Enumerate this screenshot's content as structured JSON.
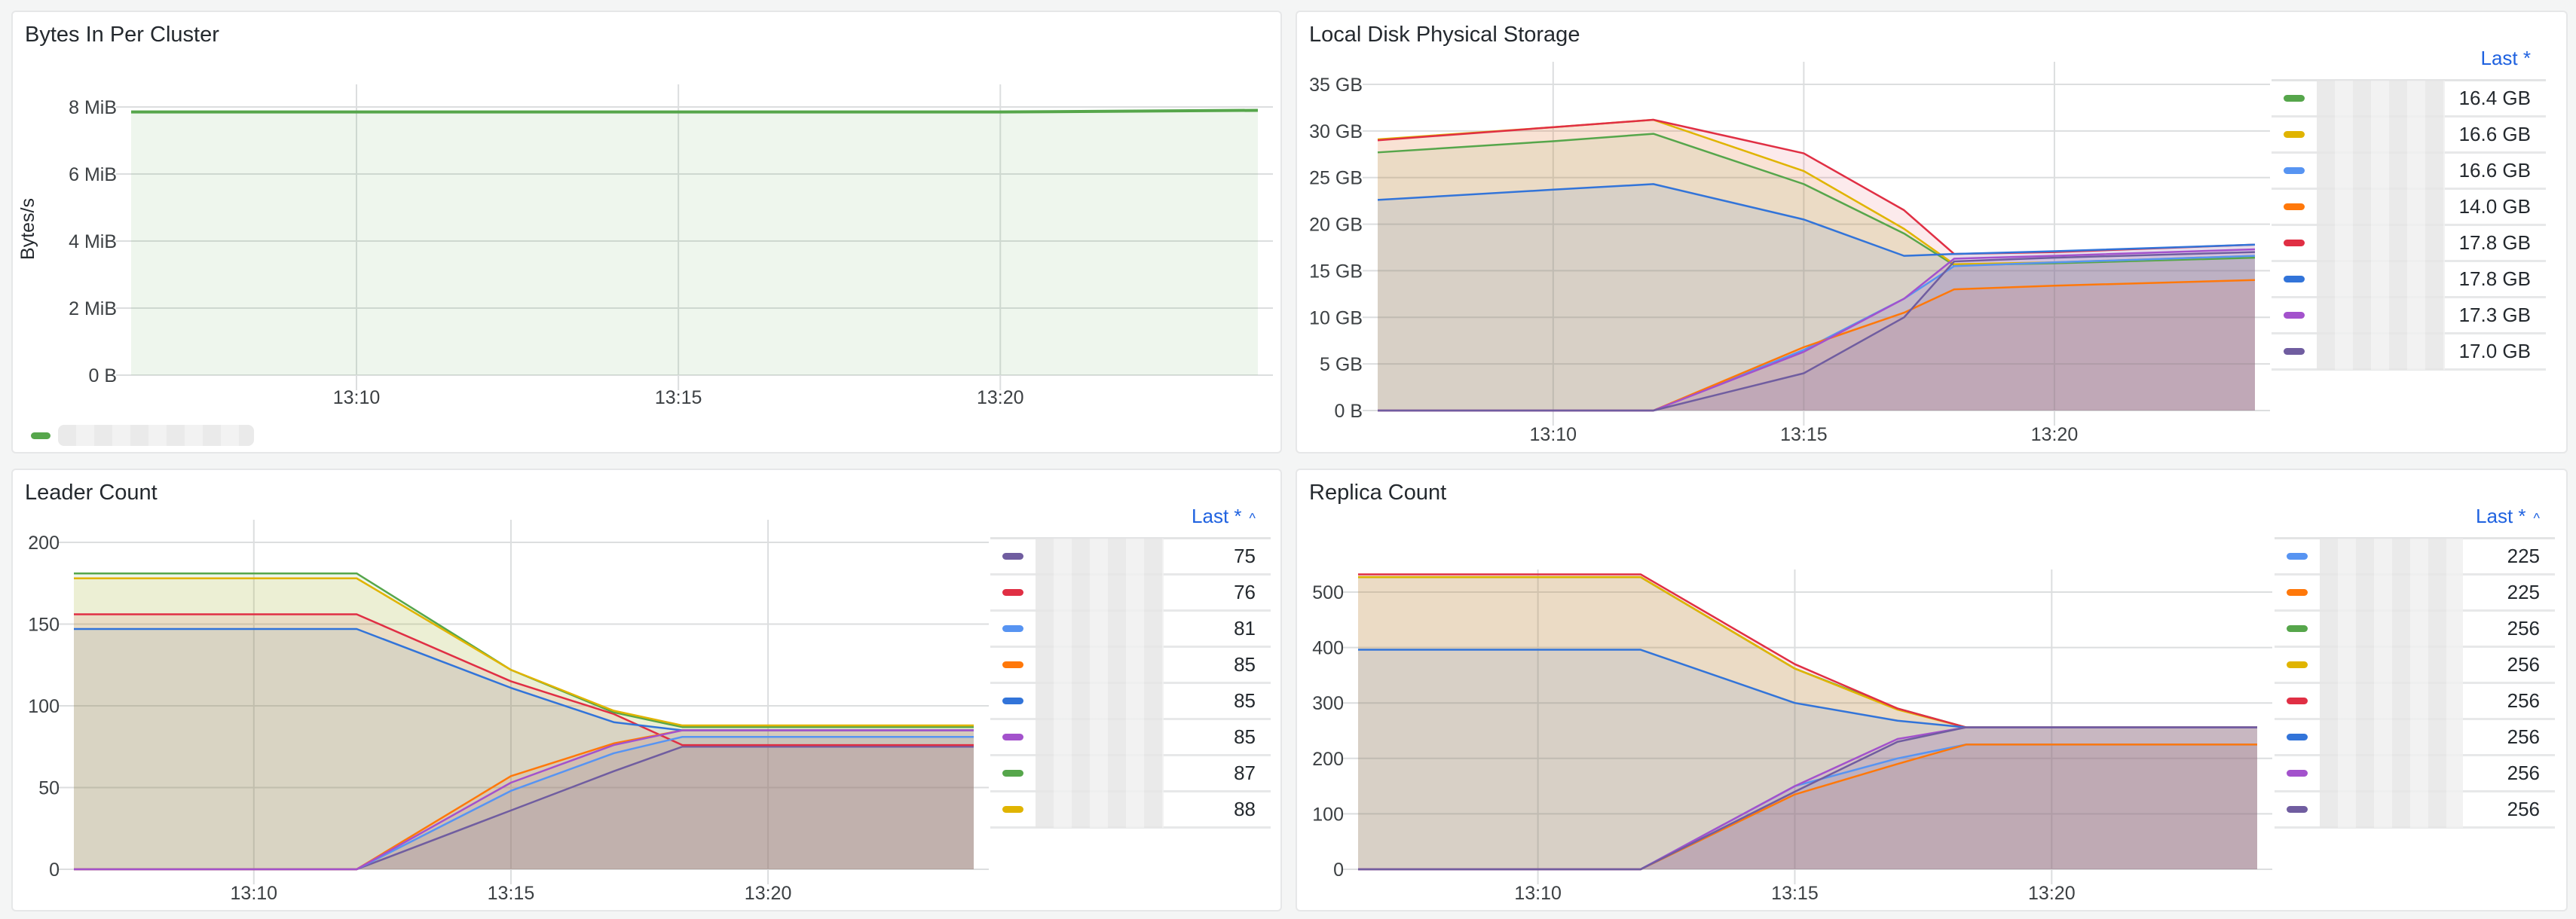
{
  "panels": {
    "bytes_in": {
      "title": "Bytes In Per Cluster",
      "y_axis_label": "Bytes/s",
      "y_ticks": [
        "8 MiB",
        "6 MiB",
        "4 MiB",
        "2 MiB",
        "0 B"
      ],
      "x_ticks": [
        "13:10",
        "13:15",
        "13:20"
      ],
      "legend": [
        {
          "color": "#56a64b",
          "name": "[redacted]"
        }
      ]
    },
    "local_disk": {
      "title": "Local Disk Physical Storage",
      "y_ticks": [
        "35 GB",
        "30 GB",
        "25 GB",
        "20 GB",
        "15 GB",
        "10 GB",
        "5 GB",
        "0 B"
      ],
      "x_ticks": [
        "13:10",
        "13:15",
        "13:20"
      ],
      "legend_header": "Last *",
      "legend": [
        {
          "color": "#56a64b",
          "name": "[redacted]",
          "value": "16.4 GB"
        },
        {
          "color": "#e0b400",
          "name": "[redacted]",
          "value": "16.6 GB"
        },
        {
          "color": "#5794f2",
          "name": "[redacted]",
          "value": "16.6 GB"
        },
        {
          "color": "#ff780a",
          "name": "[redacted]",
          "value": "14.0 GB"
        },
        {
          "color": "#e02f44",
          "name": "[redacted]",
          "value": "17.8 GB"
        },
        {
          "color": "#3274d9",
          "name": "[redacted]",
          "value": "17.8 GB"
        },
        {
          "color": "#a352cc",
          "name": "[redacted]",
          "value": "17.3 GB"
        },
        {
          "color": "#705da0",
          "name": "[redacted]",
          "value": "17.0 GB"
        }
      ]
    },
    "leader_count": {
      "title": "Leader Count",
      "y_ticks": [
        "200",
        "150",
        "100",
        "50",
        "0"
      ],
      "x_ticks": [
        "13:10",
        "13:15",
        "13:20"
      ],
      "legend_header": "Last *",
      "legend_sort_icon": "^",
      "legend": [
        {
          "color": "#705da0",
          "name": "[redacted]",
          "value": "75"
        },
        {
          "color": "#e02f44",
          "name": "[redacted]",
          "value": "76"
        },
        {
          "color": "#5794f2",
          "name": "[redacted]",
          "value": "81"
        },
        {
          "color": "#ff780a",
          "name": "[redacted]",
          "value": "85"
        },
        {
          "color": "#3274d9",
          "name": "[redacted]",
          "value": "85"
        },
        {
          "color": "#a352cc",
          "name": "[redacted]",
          "value": "85"
        },
        {
          "color": "#56a64b",
          "name": "[redacted]",
          "value": "87"
        },
        {
          "color": "#e0b400",
          "name": "[redacted]",
          "value": "88"
        }
      ]
    },
    "replica_count": {
      "title": "Replica Count",
      "y_ticks": [
        "500",
        "400",
        "300",
        "200",
        "100",
        "0"
      ],
      "x_ticks": [
        "13:10",
        "13:15",
        "13:20"
      ],
      "legend_header": "Last *",
      "legend_sort_icon": "^",
      "legend": [
        {
          "color": "#5794f2",
          "name": "[redacted]",
          "value": "225"
        },
        {
          "color": "#ff780a",
          "name": "[redacted]",
          "value": "225"
        },
        {
          "color": "#56a64b",
          "name": "[redacted]",
          "value": "256"
        },
        {
          "color": "#e0b400",
          "name": "[redacted]",
          "value": "256"
        },
        {
          "color": "#e02f44",
          "name": "[redacted]",
          "value": "256"
        },
        {
          "color": "#3274d9",
          "name": "[redacted]",
          "value": "256"
        },
        {
          "color": "#a352cc",
          "name": "[redacted]",
          "value": "256"
        },
        {
          "color": "#705da0",
          "name": "[redacted]",
          "value": "256"
        }
      ]
    }
  },
  "chart_data": [
    {
      "type": "area",
      "title": "Bytes In Per Cluster",
      "xlabel": "",
      "ylabel": "Bytes/s",
      "x": [
        "13:06:30",
        "13:10",
        "13:15",
        "13:20",
        "13:24"
      ],
      "ylim": [
        0,
        8.6
      ],
      "y_unit": "MiB",
      "grid": true,
      "legend_position": "bottom",
      "series": [
        {
          "name": "[redacted]",
          "color": "#56a64b",
          "values": [
            7.85,
            7.85,
            7.85,
            7.85,
            7.9
          ]
        }
      ]
    },
    {
      "type": "area",
      "title": "Local Disk Physical Storage",
      "xlabel": "",
      "ylabel": "",
      "x": [
        "13:06:30",
        "13:10",
        "13:12",
        "13:15",
        "13:17",
        "13:18",
        "13:20",
        "13:24"
      ],
      "ylim": [
        0,
        35
      ],
      "y_unit": "GB",
      "grid": true,
      "legend_position": "right",
      "series": [
        {
          "name": "[redacted]",
          "color": "#56a64b",
          "values": [
            27.7,
            28.9,
            29.7,
            24.3,
            19.0,
            15.6,
            15.8,
            16.4
          ]
        },
        {
          "name": "[redacted]",
          "color": "#e0b400",
          "values": [
            29.1,
            30.4,
            31.2,
            25.7,
            19.5,
            15.7,
            15.9,
            16.6
          ]
        },
        {
          "name": "[redacted]",
          "color": "#5794f2",
          "values": [
            0,
            0,
            0,
            6.5,
            12.0,
            15.5,
            15.9,
            16.6
          ]
        },
        {
          "name": "[redacted]",
          "color": "#ff780a",
          "values": [
            0,
            0,
            0,
            6.8,
            10.5,
            13.0,
            13.4,
            14.0
          ]
        },
        {
          "name": "[redacted]",
          "color": "#e02f44",
          "values": [
            29.0,
            30.4,
            31.2,
            27.6,
            21.5,
            16.8,
            17.0,
            17.8
          ]
        },
        {
          "name": "[redacted]",
          "color": "#3274d9",
          "values": [
            22.6,
            23.7,
            24.3,
            20.5,
            16.6,
            16.8,
            17.1,
            17.8
          ]
        },
        {
          "name": "[redacted]",
          "color": "#a352cc",
          "values": [
            0,
            0,
            0,
            6.3,
            12.0,
            16.3,
            16.6,
            17.3
          ]
        },
        {
          "name": "[redacted]",
          "color": "#705da0",
          "values": [
            0,
            0,
            0,
            4.0,
            10.0,
            16.0,
            16.4,
            17.0
          ]
        }
      ]
    },
    {
      "type": "area",
      "title": "Leader Count",
      "xlabel": "",
      "ylabel": "",
      "x": [
        "13:06:30",
        "13:10",
        "13:12",
        "13:15",
        "13:17",
        "13:18:20",
        "13:20",
        "13:24"
      ],
      "ylim": [
        0,
        200
      ],
      "grid": true,
      "legend_position": "right",
      "series": [
        {
          "name": "[redacted]",
          "color": "#705da0",
          "values": [
            0,
            0,
            0,
            36,
            60,
            75,
            75,
            75
          ]
        },
        {
          "name": "[redacted]",
          "color": "#e02f44",
          "values": [
            156,
            156,
            156,
            115,
            95,
            76,
            76,
            76
          ]
        },
        {
          "name": "[redacted]",
          "color": "#5794f2",
          "values": [
            0,
            0,
            0,
            48,
            71,
            81,
            81,
            81
          ]
        },
        {
          "name": "[redacted]",
          "color": "#ff780a",
          "values": [
            0,
            0,
            0,
            57,
            77,
            85,
            85,
            85
          ]
        },
        {
          "name": "[redacted]",
          "color": "#3274d9",
          "values": [
            147,
            147,
            147,
            111,
            90,
            85,
            85,
            85
          ]
        },
        {
          "name": "[redacted]",
          "color": "#a352cc",
          "values": [
            0,
            0,
            0,
            53,
            76,
            85,
            85,
            85
          ]
        },
        {
          "name": "[redacted]",
          "color": "#56a64b",
          "values": [
            181,
            181,
            181,
            122,
            96,
            87,
            87,
            87
          ]
        },
        {
          "name": "[redacted]",
          "color": "#e0b400",
          "values": [
            178,
            178,
            178,
            122,
            97,
            88,
            88,
            88
          ]
        }
      ]
    },
    {
      "type": "area",
      "title": "Replica Count",
      "xlabel": "",
      "ylabel": "",
      "x": [
        "13:06:30",
        "13:10",
        "13:12",
        "13:15",
        "13:17",
        "13:18:20",
        "13:20",
        "13:24"
      ],
      "ylim": [
        0,
        560
      ],
      "grid": true,
      "legend_position": "right",
      "series": [
        {
          "name": "[redacted]",
          "color": "#5794f2",
          "values": [
            0,
            0,
            0,
            150,
            200,
            225,
            225,
            225
          ]
        },
        {
          "name": "[redacted]",
          "color": "#ff780a",
          "values": [
            0,
            0,
            0,
            135,
            190,
            225,
            225,
            225
          ]
        },
        {
          "name": "[redacted]",
          "color": "#56a64b",
          "values": [
            527,
            527,
            527,
            362,
            290,
            256,
            256,
            256
          ]
        },
        {
          "name": "[redacted]",
          "color": "#e0b400",
          "values": [
            527,
            527,
            527,
            362,
            288,
            256,
            256,
            256
          ]
        },
        {
          "name": "[redacted]",
          "color": "#e02f44",
          "values": [
            532,
            532,
            532,
            370,
            290,
            256,
            256,
            256
          ]
        },
        {
          "name": "[redacted]",
          "color": "#3274d9",
          "values": [
            396,
            396,
            396,
            300,
            268,
            256,
            256,
            256
          ]
        },
        {
          "name": "[redacted]",
          "color": "#a352cc",
          "values": [
            0,
            0,
            0,
            150,
            235,
            256,
            256,
            256
          ]
        },
        {
          "name": "[redacted]",
          "color": "#705da0",
          "values": [
            0,
            0,
            0,
            140,
            230,
            256,
            256,
            256
          ]
        }
      ]
    }
  ]
}
